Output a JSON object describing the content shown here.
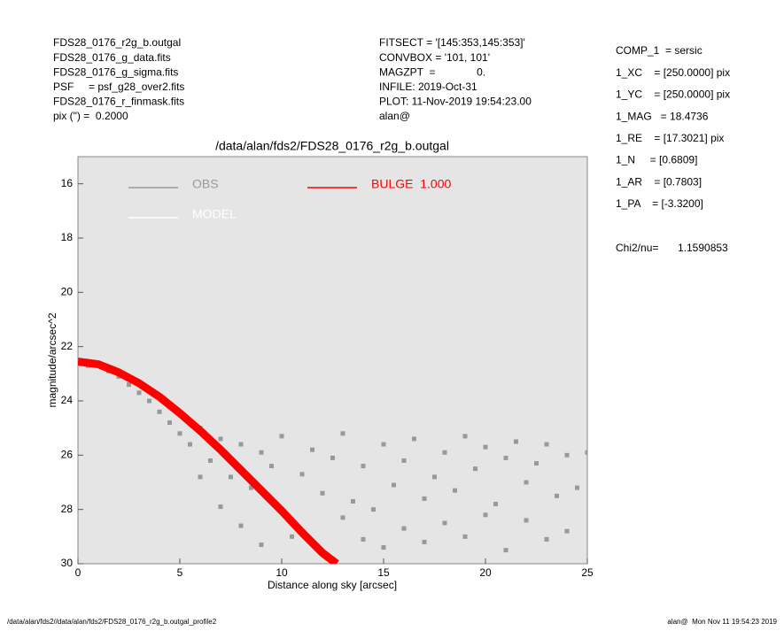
{
  "header": {
    "left": [
      "FDS28_0176_r2g_b.outgal",
      "FDS28_0176_g_data.fits",
      "FDS28_0176_g_sigma.fits",
      "PSF     = psf_g28_over2.fits",
      "FDS28_0176_r_finmask.fits",
      "pix (\") =  0.2000"
    ],
    "middle": [
      "FITSECT = '[145:353,145:353]'",
      "CONVBOX = '101, 101'",
      "MAGZPT  =              0.",
      "INFILE: 2019-Oct-31",
      "PLOT: 11-Nov-2019 19:54:23.00",
      "alan@"
    ],
    "right": [
      "COMP_1  = sersic",
      "1_XC    = [250.0000] pix",
      "1_YC    = [250.0000] pix",
      "1_MAG   = 18.4736",
      "1_RE    = [17.3021] pix",
      "1_N     = [0.6809]",
      "1_AR    = [0.7803]",
      "1_PA    = [-3.3200]"
    ],
    "chi2_label": "Chi2/nu=",
    "chi2_value": "1.1590853"
  },
  "footer": {
    "left": "/data/alan/fds2//data/alan/fds2/FDS28_0176_r2g_b.outgal_profile2",
    "right": "alan@  Mon Nov 11 19:54:23 2019"
  },
  "chart_data": {
    "type": "scatter",
    "title": "/data/alan/fds2/FDS28_0176_r2g_b.outgal",
    "xlabel": "Distance along sky [arcsec]",
    "ylabel": "magnitude/arcsec^2",
    "xlim": [
      0,
      25
    ],
    "ylim": [
      30,
      15
    ],
    "xticks": [
      0,
      5,
      10,
      15,
      20,
      25
    ],
    "yticks": [
      16,
      18,
      20,
      22,
      24,
      26,
      28,
      30
    ],
    "series": [
      {
        "name": "OBS",
        "type": "scatter",
        "color": "#999999",
        "x": [
          0.1,
          0.5,
          1,
          1.5,
          2,
          2.5,
          3,
          3.5,
          4,
          4.5,
          5,
          5.5,
          6,
          6,
          6.5,
          7,
          7,
          7.5,
          8,
          8,
          8.5,
          9,
          9,
          9.5,
          10,
          10,
          10.5,
          11,
          11,
          11.5,
          12,
          12,
          12.5,
          13,
          13,
          13.5,
          14,
          14,
          14.5,
          15,
          15,
          15.5,
          16,
          16,
          16.5,
          17,
          17,
          17.5,
          18,
          18,
          18.5,
          19,
          19,
          19.5,
          20,
          20,
          20.5,
          21,
          21,
          21.5,
          22,
          22,
          22.5,
          23,
          23,
          23.5,
          24,
          24,
          24.5,
          25
        ],
        "values": [
          22.6,
          22.7,
          22.7,
          22.9,
          23.1,
          23.4,
          23.7,
          24.0,
          24.4,
          24.8,
          25.2,
          25.6,
          25.0,
          26.8,
          26.2,
          25.4,
          27.9,
          26.8,
          25.6,
          28.6,
          27.2,
          25.9,
          29.3,
          26.4,
          28.1,
          25.3,
          29.0,
          26.7,
          28.8,
          25.8,
          27.4,
          29.6,
          26.1,
          28.3,
          25.2,
          27.7,
          29.1,
          26.4,
          28.0,
          25.6,
          29.4,
          27.1,
          26.2,
          28.7,
          25.4,
          27.6,
          29.2,
          26.8,
          25.9,
          28.5,
          27.3,
          25.3,
          29.0,
          26.5,
          28.2,
          25.7,
          27.8,
          29.5,
          26.1,
          25.5,
          28.4,
          27.0,
          26.3,
          29.1,
          25.6,
          27.5,
          28.8,
          26.0,
          27.2,
          25.9
        ]
      },
      {
        "name": "MODEL",
        "type": "line",
        "color": "#ffffff",
        "x": [
          0,
          1,
          2,
          3,
          4,
          5,
          6,
          7,
          8,
          9,
          10,
          11,
          12,
          12.7
        ],
        "values": [
          22.55,
          22.65,
          22.95,
          23.35,
          23.85,
          24.45,
          25.1,
          25.8,
          26.55,
          27.3,
          28.05,
          28.85,
          29.6,
          30.0
        ]
      },
      {
        "name": "BULGE  1.000",
        "type": "line",
        "color": "#ff0000",
        "x": [
          0,
          1,
          2,
          3,
          4,
          5,
          6,
          7,
          8,
          9,
          10,
          11,
          12,
          12.7
        ],
        "values": [
          22.55,
          22.65,
          22.95,
          23.35,
          23.85,
          24.45,
          25.1,
          25.8,
          26.55,
          27.3,
          28.05,
          28.85,
          29.6,
          30.0
        ]
      }
    ]
  }
}
